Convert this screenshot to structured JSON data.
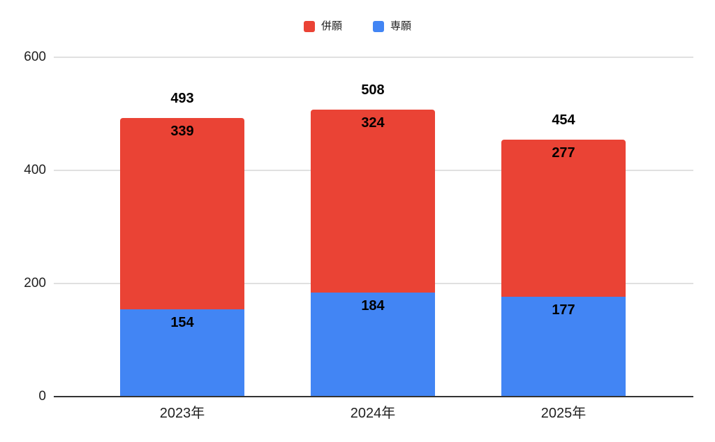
{
  "chart_data": {
    "type": "bar",
    "stacked": true,
    "categories": [
      "2023年",
      "2024年",
      "2025年"
    ],
    "series": [
      {
        "name": "専願",
        "color": "#4285F4",
        "values": [
          154,
          184,
          177
        ]
      },
      {
        "name": "併願",
        "color": "#EA4335",
        "values": [
          339,
          324,
          277
        ]
      }
    ],
    "totals": [
      493,
      508,
      454
    ],
    "legend": [
      {
        "label": "併願",
        "color": "#EA4335"
      },
      {
        "label": "専願",
        "color": "#4285F4"
      }
    ],
    "legend_position": "top",
    "grid": true,
    "y_ticks": [
      0,
      200,
      400,
      600
    ],
    "ylim": [
      0,
      600
    ],
    "xlabel": "",
    "ylabel": "",
    "title": ""
  },
  "colors": {
    "background": "#ffffff",
    "gridline": "#e0e0e0",
    "axis_line": "#333333",
    "tick_text": "#212121",
    "data_label": "#000000"
  }
}
